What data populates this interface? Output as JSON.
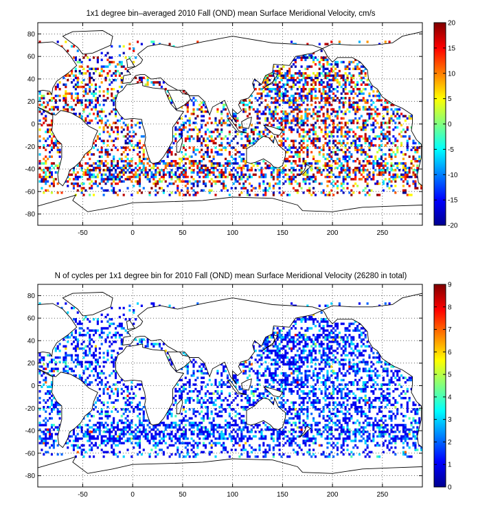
{
  "chart_data": [
    {
      "type": "heatmap",
      "title": "1x1 degree bin–averaged 2010 Fall (OND) mean Surface Meridional Velocity, cm/s",
      "xlabel": "",
      "ylabel": "",
      "xlim": [
        -95,
        290
      ],
      "ylim": [
        -90,
        90
      ],
      "x_ticks": [
        -50,
        0,
        50,
        100,
        150,
        200,
        250
      ],
      "y_ticks": [
        80,
        60,
        40,
        20,
        0,
        -20,
        -40,
        -60,
        -80
      ],
      "grid": "dotted",
      "colorbar": {
        "min": -20,
        "max": 20,
        "ticks": [
          20,
          15,
          10,
          5,
          0,
          -5,
          -10,
          -15,
          -20
        ],
        "colormap": "jet"
      },
      "data_description_visible": "scattered 1x1 degree bins over the world ocean between about 70N and 65S, densest in the Pacific, values spanning -20 to 20"
    },
    {
      "type": "heatmap",
      "title": "N of cycles per 1x1 degree bin for 2010 Fall (OND) mean Surface Meridional Velocity (26280 in total)",
      "xlabel": "",
      "ylabel": "",
      "xlim": [
        -95,
        290
      ],
      "ylim": [
        -90,
        90
      ],
      "x_ticks": [
        -50,
        0,
        50,
        100,
        150,
        200,
        250
      ],
      "y_ticks": [
        80,
        60,
        40,
        20,
        0,
        -20,
        -40,
        -60,
        -80
      ],
      "grid": "dotted",
      "colorbar": {
        "min": 0,
        "max": 9,
        "ticks": [
          9,
          8,
          7,
          6,
          5,
          4,
          3,
          2,
          1,
          0
        ],
        "colormap": "jet"
      },
      "total_cycles": 26280
    }
  ],
  "colors": {
    "coast": "#000000",
    "grid": "#000000",
    "background": "#ffffff"
  }
}
